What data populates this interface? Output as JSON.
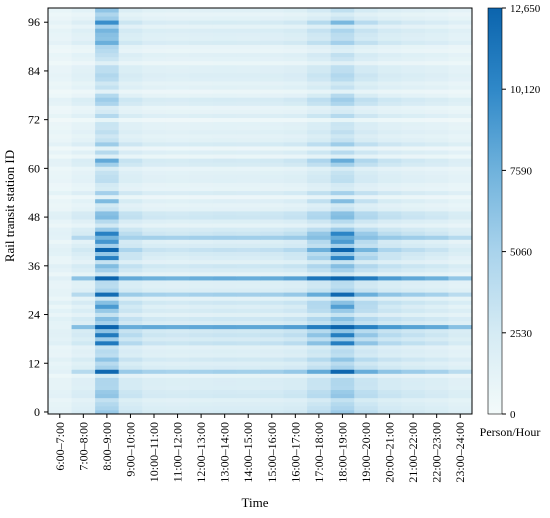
{
  "chart_data": {
    "type": "heatmap",
    "xlabel": "Time",
    "ylabel": "Rail transit station ID",
    "x_categories": [
      "6:00–7:00",
      "7:00–8:00",
      "8:00–9:00",
      "9:00–10:00",
      "10:00–11:00",
      "11:00–12:00",
      "12:00–13:00",
      "13:00–14:00",
      "14:00–15:00",
      "15:00–16:00",
      "16:00–17:00",
      "17:00–18:00",
      "18:00–19:00",
      "19:00–20:00",
      "20:00–21:00",
      "21:00–22:00",
      "22:00–23:00",
      "23:00–24:00"
    ],
    "y_ticks": [
      0,
      12,
      24,
      36,
      48,
      60,
      72,
      84,
      96
    ],
    "y_tick_labels": [
      "0",
      "12",
      "24",
      "36",
      "48",
      "60",
      "72",
      "84",
      "96"
    ],
    "y_range": [
      0,
      100
    ],
    "station_count": 100,
    "value_range": [
      0,
      12650
    ],
    "colorbar": {
      "ticks": [
        0,
        2530,
        5060,
        7590,
        10120,
        12650
      ],
      "tick_labels": [
        "0",
        "2530",
        "5060",
        "7590",
        "10,120",
        "12,650"
      ],
      "label": "Person/Hour",
      "low_color": "#f3fafa",
      "high_color": "#0b64ad"
    },
    "grid": false,
    "hour_profile": [
      0.05,
      0.22,
      1.0,
      0.42,
      0.28,
      0.26,
      0.29,
      0.31,
      0.3,
      0.32,
      0.38,
      0.62,
      0.98,
      0.6,
      0.42,
      0.34,
      0.28,
      0.18
    ],
    "peak_stations": {
      "21": 0.55,
      "33": 0.62,
      "26": 0.5,
      "29": 0.46,
      "38": 0.6,
      "40": 0.72,
      "42": 0.55,
      "44": 0.38,
      "10": 0.42,
      "52": 0.3,
      "19": 0.4,
      "17": 0.35,
      "62": 0.22,
      "78": 0.18,
      "96": 0.2
    },
    "flat_stations": {
      "21": 0.55,
      "33": 0.42,
      "43": 0.28,
      "29": 0.26,
      "10": 0.22
    }
  }
}
